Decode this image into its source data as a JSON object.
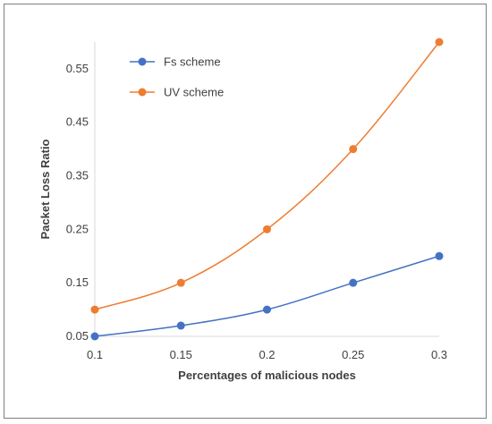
{
  "chart_data": {
    "type": "line",
    "title": "",
    "xlabel": "Percentages of malicious nodes",
    "ylabel": "Packet Loss Ratio",
    "x": [
      0.1,
      0.15,
      0.2,
      0.25,
      0.3
    ],
    "x_tick_labels": [
      "0.1",
      "0.15",
      "0.2",
      "0.25",
      "0.3"
    ],
    "xlim": [
      0.1,
      0.3
    ],
    "ylim": [
      0.05,
      0.6
    ],
    "y_ticks": [
      0.05,
      0.15,
      0.25,
      0.35,
      0.45,
      0.55
    ],
    "y_tick_labels": [
      "0.05",
      "0.15",
      "0.25",
      "0.35",
      "0.45",
      "0.55"
    ],
    "grid": false,
    "legend_position": "top-left",
    "series": [
      {
        "name": "Fs scheme",
        "color": "#4472C4",
        "values": [
          0.05,
          0.07,
          0.1,
          0.15,
          0.2
        ]
      },
      {
        "name": "UV scheme",
        "color": "#ED7D31",
        "values": [
          0.1,
          0.15,
          0.25,
          0.4,
          0.6
        ]
      }
    ]
  }
}
